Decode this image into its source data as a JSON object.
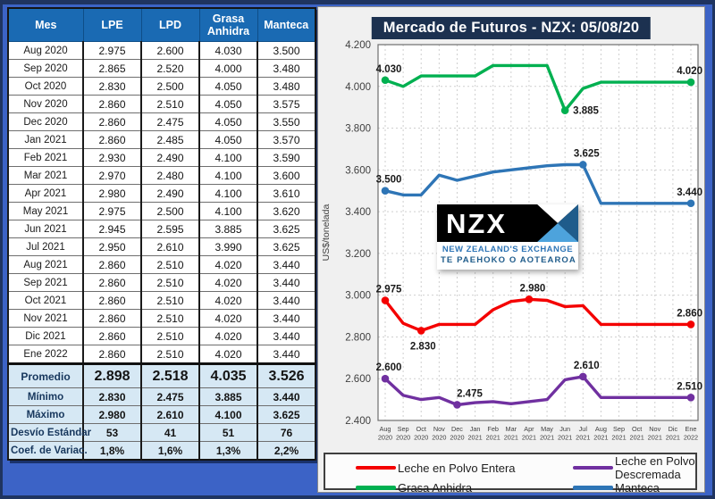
{
  "page": {
    "bg_blue": "#3C63C6",
    "frame_navy": "#1F3460",
    "table_header_blue": "#1A6AB3",
    "summary_bg": "#D6E8F4"
  },
  "table": {
    "headers": [
      "Mes",
      "LPE",
      "LPD",
      "Grasa Anhidra",
      "Manteca"
    ],
    "rows": [
      [
        "Aug 2020",
        "2.975",
        "2.600",
        "4.030",
        "3.500"
      ],
      [
        "Sep 2020",
        "2.865",
        "2.520",
        "4.000",
        "3.480"
      ],
      [
        "Oct 2020",
        "2.830",
        "2.500",
        "4.050",
        "3.480"
      ],
      [
        "Nov 2020",
        "2.860",
        "2.510",
        "4.050",
        "3.575"
      ],
      [
        "Dec 2020",
        "2.860",
        "2.475",
        "4.050",
        "3.550"
      ],
      [
        "Jan 2021",
        "2.860",
        "2.485",
        "4.050",
        "3.570"
      ],
      [
        "Feb 2021",
        "2.930",
        "2.490",
        "4.100",
        "3.590"
      ],
      [
        "Mar 2021",
        "2.970",
        "2.480",
        "4.100",
        "3.600"
      ],
      [
        "Apr 2021",
        "2.980",
        "2.490",
        "4.100",
        "3.610"
      ],
      [
        "May 2021",
        "2.975",
        "2.500",
        "4.100",
        "3.620"
      ],
      [
        "Jun 2021",
        "2.945",
        "2.595",
        "3.885",
        "3.625"
      ],
      [
        "Jul 2021",
        "2.950",
        "2.610",
        "3.990",
        "3.625"
      ],
      [
        "Aug 2021",
        "2.860",
        "2.510",
        "4.020",
        "3.440"
      ],
      [
        "Sep 2021",
        "2.860",
        "2.510",
        "4.020",
        "3.440"
      ],
      [
        "Oct 2021",
        "2.860",
        "2.510",
        "4.020",
        "3.440"
      ],
      [
        "Nov 2021",
        "2.860",
        "2.510",
        "4.020",
        "3.440"
      ],
      [
        "Dic 2021",
        "2.860",
        "2.510",
        "4.020",
        "3.440"
      ],
      [
        "Ene 2022",
        "2.860",
        "2.510",
        "4.020",
        "3.440"
      ]
    ],
    "summary": [
      {
        "label": "Promedio",
        "values": [
          "2.898",
          "2.518",
          "4.035",
          "3.526"
        ],
        "big": true
      },
      {
        "label": "Mínimo",
        "values": [
          "2.830",
          "2.475",
          "3.885",
          "3.440"
        ]
      },
      {
        "label": "Máximo",
        "values": [
          "2.980",
          "2.610",
          "4.100",
          "3.625"
        ]
      },
      {
        "label": "Desvío Estándar",
        "values": [
          "53",
          "41",
          "51",
          "76"
        ]
      },
      {
        "label": "Coef. de Variac.",
        "values": [
          "1,8%",
          "1,6%",
          "1,3%",
          "2,2%"
        ]
      }
    ]
  },
  "chart_data": {
    "type": "line",
    "title": "Mercado de Futuros - NZX: 05/08/20",
    "ylabel": "US$/tonelada",
    "ylim": [
      2400,
      4200
    ],
    "ytick_step": 200,
    "yticks_labels": [
      "4.200",
      "4.000",
      "3.800",
      "3.600",
      "3.400",
      "3.200",
      "3.000",
      "2.800",
      "2.600",
      "2.400"
    ],
    "grid": true,
    "legend_position": "bottom",
    "x": [
      [
        "Aug",
        "2020"
      ],
      [
        "Sep",
        "2020"
      ],
      [
        "Oct",
        "2020"
      ],
      [
        "Nov",
        "2020"
      ],
      [
        "Dec",
        "2020"
      ],
      [
        "Jan",
        "2021"
      ],
      [
        "Feb",
        "2021"
      ],
      [
        "Mar",
        "2021"
      ],
      [
        "Apr",
        "2021"
      ],
      [
        "May",
        "2021"
      ],
      [
        "Jun",
        "2021"
      ],
      [
        "Jul",
        "2021"
      ],
      [
        "Aug",
        "2021"
      ],
      [
        "Sep",
        "2021"
      ],
      [
        "Oct",
        "2021"
      ],
      [
        "Nov",
        "2021"
      ],
      [
        "Dic",
        "2021"
      ],
      [
        "Ene",
        "2022"
      ]
    ],
    "series": [
      {
        "name": "Leche en Polvo Entera",
        "color": "#F40000",
        "values": [
          2975,
          2865,
          2830,
          2860,
          2860,
          2860,
          2930,
          2970,
          2980,
          2975,
          2945,
          2950,
          2860,
          2860,
          2860,
          2860,
          2860,
          2860
        ],
        "labels": [
          {
            "i": 0,
            "text": "2.975",
            "pos": "above"
          },
          {
            "i": 2,
            "text": "2.830",
            "pos": "below"
          },
          {
            "i": 8,
            "text": "2.980",
            "pos": "above"
          },
          {
            "i": 17,
            "text": "2.860",
            "pos": "end"
          }
        ]
      },
      {
        "name": "Leche en Polvo Descremada",
        "color": "#7030A0",
        "values": [
          2600,
          2520,
          2500,
          2510,
          2475,
          2485,
          2490,
          2480,
          2490,
          2500,
          2595,
          2610,
          2510,
          2510,
          2510,
          2510,
          2510,
          2510
        ],
        "labels": [
          {
            "i": 0,
            "text": "2.600",
            "pos": "above"
          },
          {
            "i": 4,
            "text": "2.475",
            "pos": "above-right"
          },
          {
            "i": 11,
            "text": "2.610",
            "pos": "above"
          },
          {
            "i": 17,
            "text": "2.510",
            "pos": "end"
          }
        ]
      },
      {
        "name": "Grasa Anhidra",
        "color": "#00B050",
        "values": [
          4030,
          4000,
          4050,
          4050,
          4050,
          4050,
          4100,
          4100,
          4100,
          4100,
          3885,
          3990,
          4020,
          4020,
          4020,
          4020,
          4020,
          4020
        ],
        "labels": [
          {
            "i": 0,
            "text": "4.030",
            "pos": "above"
          },
          {
            "i": 10,
            "text": "3.885",
            "pos": "right"
          },
          {
            "i": 17,
            "text": "4.020",
            "pos": "end"
          }
        ]
      },
      {
        "name": "Manteca",
        "color": "#2E75B6",
        "values": [
          3500,
          3480,
          3480,
          3575,
          3550,
          3570,
          3590,
          3600,
          3610,
          3620,
          3625,
          3625,
          3440,
          3440,
          3440,
          3440,
          3440,
          3440
        ],
        "labels": [
          {
            "i": 0,
            "text": "3.500",
            "pos": "above"
          },
          {
            "i": 11,
            "text": "3.625",
            "pos": "above"
          },
          {
            "i": 17,
            "text": "3.440",
            "pos": "end"
          }
        ]
      }
    ]
  },
  "legend": {
    "entries": [
      {
        "label": "Leche en Polvo Entera",
        "color": "#F40000"
      },
      {
        "label": "Leche en Polvo Descremada",
        "color": "#7030A0"
      },
      {
        "label": "Grasa Anhidra",
        "color": "#00B050"
      },
      {
        "label": "Manteca",
        "color": "#2E75B6"
      }
    ]
  },
  "logo": {
    "text": "NZX",
    "tagline1": "NEW ZEALAND'S EXCHANGE",
    "tagline2": "TE PAEHOKO O AOTEAROA",
    "mark_colors": {
      "top": "#FFFFFF",
      "right": "#1F5C8B",
      "bottom": "#4DA3DC",
      "left": "#000000"
    }
  }
}
